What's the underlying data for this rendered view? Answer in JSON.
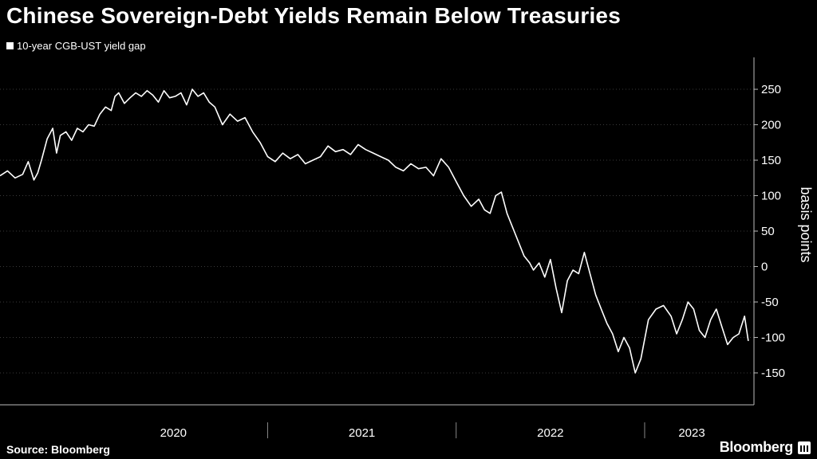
{
  "title": "Chinese Sovereign-Debt Yields Remain Below Treasuries",
  "legend": {
    "label": "10-year CGB-UST yield gap"
  },
  "source": "Source: Bloomberg",
  "brand": "Bloomberg",
  "colors": {
    "background": "#000000",
    "line": "#ffffff",
    "grid": "#3a3a3a"
  },
  "chart_data": {
    "type": "line",
    "title": "Chinese Sovereign-Debt Yields Remain Below Treasuries",
    "ylabel": "basis points",
    "ylim": [
      -195,
      295
    ],
    "xlim": [
      2019.58,
      2023.58
    ],
    "y_ticks": [
      250,
      200,
      150,
      100,
      50,
      0,
      -50,
      -100,
      -150
    ],
    "x_ticks": [
      {
        "label": "2020",
        "value": 2020.5
      },
      {
        "label": "2021",
        "value": 2021.5
      },
      {
        "label": "2022",
        "value": 2022.5
      },
      {
        "label": "2023",
        "value": 2023.25
      }
    ],
    "x_dividers": [
      2021.0,
      2022.0,
      2023.0
    ],
    "grid": "horizontal, dotted",
    "legend_position": "top-left",
    "series": [
      {
        "name": "10-year CGB-UST yield gap",
        "x": [
          2019.58,
          2019.62,
          2019.66,
          2019.7,
          2019.73,
          2019.76,
          2019.78,
          2019.8,
          2019.83,
          2019.86,
          2019.88,
          2019.9,
          2019.93,
          2019.96,
          2019.99,
          2020.02,
          2020.05,
          2020.08,
          2020.11,
          2020.14,
          2020.17,
          2020.19,
          2020.21,
          2020.24,
          2020.27,
          2020.3,
          2020.33,
          2020.36,
          2020.39,
          2020.42,
          2020.45,
          2020.48,
          2020.51,
          2020.54,
          2020.57,
          2020.6,
          2020.63,
          2020.66,
          2020.69,
          2020.72,
          2020.76,
          2020.8,
          2020.84,
          2020.88,
          2020.92,
          2020.96,
          2021.0,
          2021.04,
          2021.08,
          2021.12,
          2021.16,
          2021.2,
          2021.24,
          2021.28,
          2021.32,
          2021.36,
          2021.4,
          2021.44,
          2021.48,
          2021.52,
          2021.56,
          2021.6,
          2021.64,
          2021.68,
          2021.72,
          2021.76,
          2021.8,
          2021.84,
          2021.88,
          2021.92,
          2021.96,
          2022.0,
          2022.04,
          2022.08,
          2022.12,
          2022.15,
          2022.18,
          2022.21,
          2022.24,
          2022.27,
          2022.3,
          2022.33,
          2022.36,
          2022.39,
          2022.41,
          2022.44,
          2022.47,
          2022.5,
          2022.53,
          2022.56,
          2022.59,
          2022.62,
          2022.65,
          2022.68,
          2022.71,
          2022.74,
          2022.77,
          2022.8,
          2022.83,
          2022.86,
          2022.89,
          2022.92,
          2022.95,
          2022.98,
          2023.02,
          2023.06,
          2023.1,
          2023.14,
          2023.17,
          2023.2,
          2023.23,
          2023.26,
          2023.29,
          2023.32,
          2023.35,
          2023.38,
          2023.41,
          2023.44,
          2023.47,
          2023.5,
          2023.53,
          2023.55
        ],
        "values": [
          128,
          135,
          125,
          130,
          148,
          122,
          132,
          150,
          180,
          195,
          160,
          185,
          190,
          178,
          195,
          190,
          200,
          198,
          215,
          225,
          220,
          240,
          245,
          230,
          238,
          245,
          240,
          248,
          242,
          232,
          248,
          238,
          240,
          245,
          228,
          250,
          240,
          245,
          232,
          225,
          200,
          215,
          205,
          210,
          190,
          175,
          155,
          148,
          160,
          152,
          158,
          145,
          150,
          155,
          170,
          162,
          165,
          158,
          172,
          165,
          160,
          155,
          150,
          140,
          135,
          145,
          138,
          140,
          128,
          152,
          140,
          120,
          100,
          85,
          95,
          80,
          75,
          100,
          105,
          75,
          55,
          35,
          15,
          5,
          -5,
          5,
          -15,
          10,
          -30,
          -65,
          -20,
          -5,
          -10,
          20,
          -10,
          -40,
          -60,
          -80,
          -95,
          -120,
          -100,
          -115,
          -150,
          -130,
          -75,
          -60,
          -55,
          -70,
          -95,
          -75,
          -50,
          -60,
          -90,
          -100,
          -75,
          -60,
          -85,
          -110,
          -100,
          -95,
          -70,
          -105
        ]
      }
    ]
  }
}
